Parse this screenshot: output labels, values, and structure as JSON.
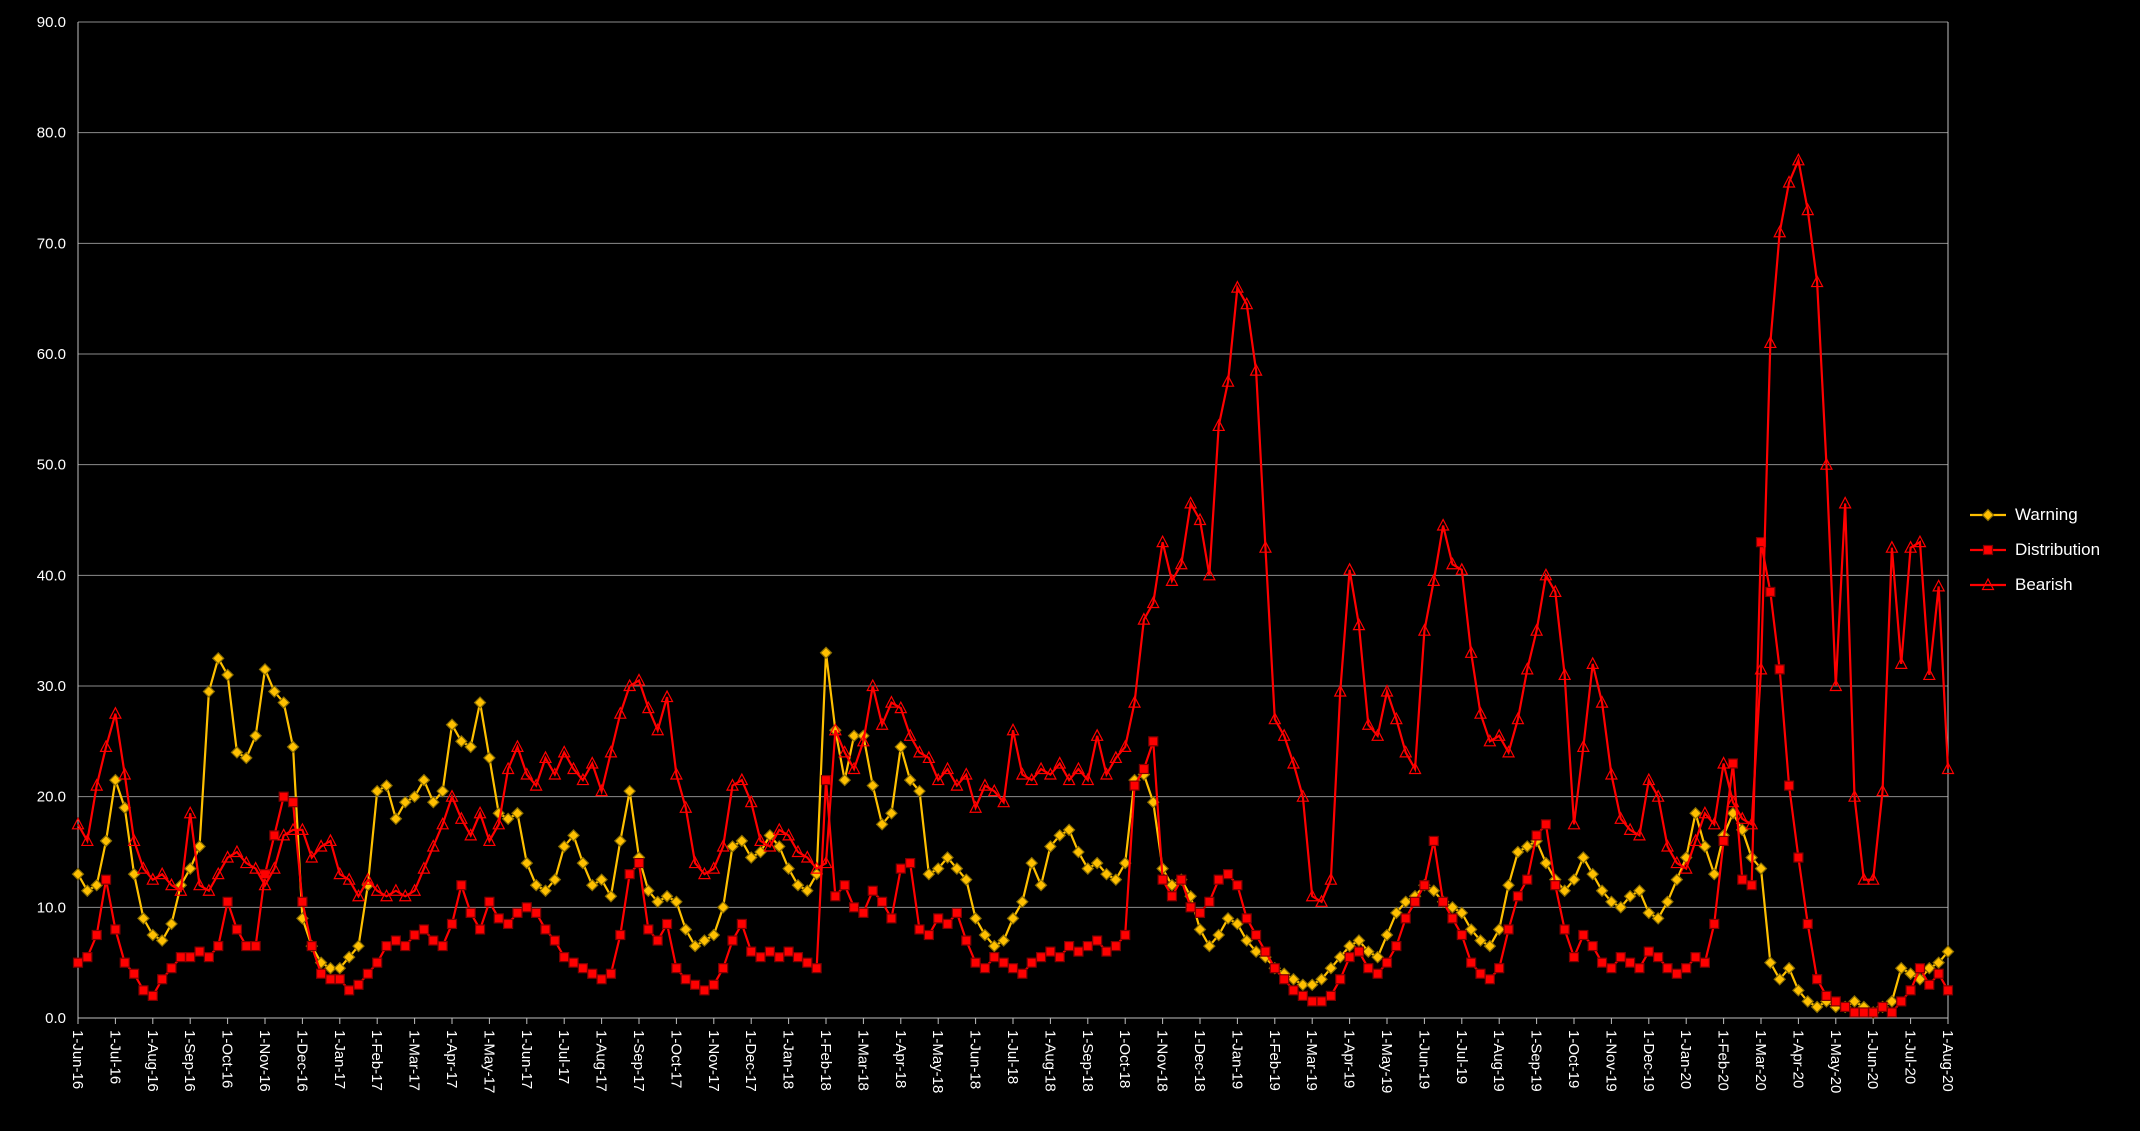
{
  "chart_data": {
    "type": "line",
    "title": "",
    "xlabel": "",
    "ylabel": "",
    "ylim": [
      0,
      90
    ],
    "y_tick_step": 10,
    "background": "#000000",
    "gridline_color": "#8c8c8c",
    "axis_line_color": "#bfbfbf",
    "axis_text_color": "#ffffff",
    "grid": true,
    "legend_position": "right",
    "points_per_label": 4,
    "x_labels": [
      "1-Jun-16",
      "1-Jul-16",
      "1-Aug-16",
      "1-Sep-16",
      "1-Oct-16",
      "1-Nov-16",
      "1-Dec-16",
      "1-Jan-17",
      "1-Feb-17",
      "1-Mar-17",
      "1-Apr-17",
      "1-May-17",
      "1-Jun-17",
      "1-Jul-17",
      "1-Aug-17",
      "1-Sep-17",
      "1-Oct-17",
      "1-Nov-17",
      "1-Dec-17",
      "1-Jan-18",
      "1-Feb-18",
      "1-Mar-18",
      "1-Apr-18",
      "1-May-18",
      "1-Jun-18",
      "1-Jul-18",
      "1-Aug-18",
      "1-Sep-18",
      "1-Oct-18",
      "1-Nov-18",
      "1-Dec-18",
      "1-Jan-19",
      "1-Feb-19",
      "1-Mar-19",
      "1-Apr-19",
      "1-May-19",
      "1-Jun-19",
      "1-Jul-19",
      "1-Aug-19",
      "1-Sep-19",
      "1-Oct-19",
      "1-Nov-19",
      "1-Dec-19",
      "1-Jan-20",
      "1-Feb-20",
      "1-Mar-20",
      "1-Apr-20",
      "1-May-20",
      "1-Jun-20",
      "1-Jul-20",
      "1-Aug-20"
    ],
    "series": [
      {
        "name": "Warning",
        "color": "#FFC000",
        "marker": "diamond",
        "marker_fill": "#FFC000",
        "marker_stroke": "#8a6d00",
        "values": [
          13,
          11.5,
          12,
          16,
          21.5,
          19,
          13,
          9,
          7.5,
          7,
          8.5,
          12,
          13.5,
          15.5,
          29.5,
          32.5,
          31,
          24,
          23.5,
          25.5,
          31.5,
          29.5,
          28.5,
          24.5,
          9,
          6.5,
          5,
          4.5,
          4.5,
          5.5,
          6.5,
          12,
          20.5,
          21,
          18,
          19.5,
          20,
          21.5,
          19.5,
          20.5,
          26.5,
          25,
          24.5,
          28.5,
          23.5,
          18.5,
          18,
          18.5,
          14,
          12,
          11.5,
          12.5,
          15.5,
          16.5,
          14,
          12,
          12.5,
          11,
          16,
          20.5,
          14.5,
          11.5,
          10.5,
          11,
          10.5,
          8,
          6.5,
          7,
          7.5,
          10,
          15.5,
          16,
          14.5,
          15,
          16.5,
          15.5,
          13.5,
          12,
          11.5,
          13,
          33,
          26,
          21.5,
          25.5,
          25.5,
          21,
          17.5,
          18.5,
          24.5,
          21.5,
          20.5,
          13,
          13.5,
          14.5,
          13.5,
          12.5,
          9,
          7.5,
          6.5,
          7,
          9,
          10.5,
          14,
          12,
          15.5,
          16.5,
          17,
          15,
          13.5,
          14,
          13,
          12.5,
          14,
          21.5,
          22,
          19.5,
          13.5,
          12,
          12.5,
          11,
          8,
          6.5,
          7.5,
          9,
          8.5,
          7,
          6,
          5.5,
          4.5,
          4,
          3.5,
          3,
          3,
          3.5,
          4.5,
          5.5,
          6.5,
          7,
          6,
          5.5,
          7.5,
          9.5,
          10.5,
          11,
          12,
          11.5,
          10.5,
          10,
          9.5,
          8,
          7,
          6.5,
          8,
          12,
          15,
          15.5,
          16,
          14,
          12.5,
          11.5,
          12.5,
          14.5,
          13,
          11.5,
          10.5,
          10,
          11,
          11.5,
          9.5,
          9,
          10.5,
          12.5,
          14.5,
          18.5,
          15.5,
          13,
          16.5,
          18.5,
          17,
          14.5,
          13.5,
          5,
          3.5,
          4.5,
          2.5,
          1.5,
          1,
          1.5,
          1,
          1,
          1.5,
          1,
          0.5,
          1,
          1.5,
          4.5,
          4,
          3.5,
          4.5,
          5,
          6
        ]
      },
      {
        "name": "Distribution",
        "color": "#FF0000",
        "marker": "square",
        "marker_fill": "#FF0000",
        "marker_stroke": "#7f0000",
        "values": [
          5,
          5.5,
          7.5,
          12.5,
          8,
          5,
          4,
          2.5,
          2,
          3.5,
          4.5,
          5.5,
          5.5,
          6,
          5.5,
          6.5,
          10.5,
          8,
          6.5,
          6.5,
          13,
          16.5,
          20,
          19.5,
          10.5,
          6.5,
          4,
          3.5,
          3.5,
          2.5,
          3,
          4,
          5,
          6.5,
          7,
          6.5,
          7.5,
          8,
          7,
          6.5,
          8.5,
          12,
          9.5,
          8,
          10.5,
          9,
          8.5,
          9.5,
          10,
          9.5,
          8,
          7,
          5.5,
          5,
          4.5,
          4,
          3.5,
          4,
          7.5,
          13,
          14,
          8,
          7,
          8.5,
          4.5,
          3.5,
          3,
          2.5,
          3,
          4.5,
          7,
          8.5,
          6,
          5.5,
          6,
          5.5,
          6,
          5.5,
          5,
          4.5,
          21.5,
          11,
          12,
          10,
          9.5,
          11.5,
          10.5,
          9,
          13.5,
          14,
          8,
          7.5,
          9,
          8.5,
          9.5,
          7,
          5,
          4.5,
          5.5,
          5,
          4.5,
          4,
          5,
          5.5,
          6,
          5.5,
          6.5,
          6,
          6.5,
          7,
          6,
          6.5,
          7.5,
          21,
          22.5,
          25,
          12.5,
          11,
          12.5,
          10,
          9.5,
          10.5,
          12.5,
          13,
          12,
          9,
          7.5,
          6,
          4.5,
          3.5,
          2.5,
          2,
          1.5,
          1.5,
          2,
          3.5,
          5.5,
          6,
          4.5,
          4,
          5,
          6.5,
          9,
          10.5,
          12,
          16,
          10.5,
          9,
          7.5,
          5,
          4,
          3.5,
          4.5,
          8,
          11,
          12.5,
          16.5,
          17.5,
          12,
          8,
          5.5,
          7.5,
          6.5,
          5,
          4.5,
          5.5,
          5,
          4.5,
          6,
          5.5,
          4.5,
          4,
          4.5,
          5.5,
          5,
          8.5,
          16,
          23,
          12.5,
          12,
          43,
          38.5,
          31.5,
          21,
          14.5,
          8.5,
          3.5,
          2,
          1.5,
          1,
          0.5,
          0.5,
          0.5,
          1,
          0.5,
          1.5,
          2.5,
          4.5,
          3,
          4,
          2.5
        ]
      },
      {
        "name": "Bearish",
        "color": "#FF0000",
        "marker": "triangle",
        "marker_fill": "none",
        "marker_stroke": "#FF0000",
        "values": [
          17.5,
          16,
          21,
          24.5,
          27.5,
          22,
          16,
          13.5,
          12.5,
          13,
          12,
          11.5,
          18.5,
          12,
          11.5,
          13,
          14.5,
          15,
          14,
          13.5,
          12,
          13.5,
          16.5,
          17,
          17,
          14.5,
          15.5,
          16,
          13,
          12.5,
          11,
          12.5,
          11.5,
          11,
          11.5,
          11,
          11.5,
          13.5,
          15.5,
          17.5,
          20,
          18,
          16.5,
          18.5,
          16,
          17.5,
          22.5,
          24.5,
          22,
          21,
          23.5,
          22,
          24,
          22.5,
          21.5,
          23,
          20.5,
          24,
          27.5,
          30,
          30.5,
          28,
          26,
          29,
          22,
          19,
          14,
          13,
          13.5,
          15.5,
          21,
          21.5,
          19.5,
          16,
          15.5,
          17,
          16.5,
          15,
          14.5,
          13.5,
          14,
          26,
          24,
          22.5,
          25,
          30,
          26.5,
          28.5,
          28,
          25.5,
          24,
          23.5,
          21.5,
          22.5,
          21,
          22,
          19,
          21,
          20.5,
          19.5,
          26,
          22,
          21.5,
          22.5,
          22,
          23,
          21.5,
          22.5,
          21.5,
          25.5,
          22,
          23.5,
          24.5,
          28.5,
          36,
          37.5,
          43,
          39.5,
          41,
          46.5,
          45,
          40,
          53.5,
          57.5,
          66,
          64.5,
          58.5,
          42.5,
          27,
          25.5,
          23,
          20,
          11,
          10.5,
          12.5,
          29.5,
          40.5,
          35.5,
          26.5,
          25.5,
          29.5,
          27,
          24,
          22.5,
          35,
          39.5,
          44.5,
          41,
          40.5,
          33,
          27.5,
          25,
          25.5,
          24,
          27,
          31.5,
          35,
          40,
          38.5,
          31,
          17.5,
          24.5,
          32,
          28.5,
          22,
          18,
          17,
          16.5,
          21.5,
          20,
          15.5,
          14,
          13.5,
          16,
          18.5,
          17.5,
          23,
          19.5,
          18,
          17.5,
          31.5,
          61,
          71,
          75.5,
          77.5,
          73,
          66.5,
          50,
          30,
          46.5,
          20,
          12.5,
          12.5,
          20.5,
          42.5,
          32,
          42.5,
          43,
          31,
          39,
          22.5
        ]
      }
    ]
  }
}
